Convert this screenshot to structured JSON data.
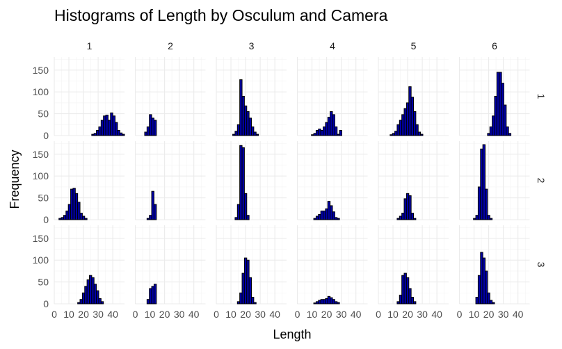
{
  "chart_data": {
    "type": "bar",
    "title": "Histograms of Length by Osculum and Camera",
    "xlabel": "Length",
    "ylabel": "Frequency",
    "col_facets": [
      "1",
      "2",
      "3",
      "4",
      "5",
      "6"
    ],
    "row_facets": [
      "1",
      "2",
      "3"
    ],
    "xlim": [
      0,
      48
    ],
    "ylim": [
      0,
      180
    ],
    "x_ticks": [
      0,
      10,
      20,
      30,
      40
    ],
    "y_ticks": [
      0,
      50,
      100,
      150
    ],
    "binwidth": 1.6,
    "bins_start": 0,
    "bar_fill": "#0000a8",
    "bar_outline": "#000000",
    "grid": true,
    "panels": [
      {
        "row": "1",
        "col": "1",
        "counts": [
          0,
          0,
          0,
          0,
          0,
          0,
          0,
          0,
          0,
          0,
          0,
          0,
          0,
          0,
          0,
          0,
          3,
          5,
          12,
          20,
          35,
          45,
          47,
          35,
          52,
          45,
          30,
          12,
          6,
          3
        ]
      },
      {
        "row": "1",
        "col": "2",
        "counts": [
          0,
          0,
          0,
          0,
          8,
          20,
          48,
          40,
          35,
          0,
          0,
          0,
          0,
          0,
          0,
          0,
          0,
          0,
          0,
          0,
          0,
          0,
          0,
          0,
          0,
          0,
          0,
          0,
          0,
          0
        ]
      },
      {
        "row": "1",
        "col": "3",
        "counts": [
          0,
          0,
          0,
          0,
          0,
          0,
          0,
          3,
          10,
          25,
          128,
          90,
          68,
          55,
          40,
          20,
          8,
          3,
          0,
          0,
          0,
          0,
          0,
          0,
          0,
          0,
          0,
          0,
          0,
          0
        ]
      },
      {
        "row": "1",
        "col": "4",
        "counts": [
          0,
          0,
          0,
          0,
          0,
          0,
          2,
          5,
          12,
          15,
          12,
          20,
          30,
          42,
          55,
          48,
          20,
          3,
          12,
          0,
          0,
          0,
          0,
          0,
          0,
          0,
          0,
          0,
          0,
          0
        ]
      },
      {
        "row": "1",
        "col": "5",
        "counts": [
          0,
          0,
          0,
          0,
          0,
          2,
          5,
          10,
          25,
          35,
          48,
          62,
          75,
          112,
          88,
          55,
          25,
          8,
          3,
          0,
          0,
          0,
          0,
          0,
          0,
          0,
          0,
          0,
          0,
          0
        ]
      },
      {
        "row": "1",
        "col": "6",
        "counts": [
          0,
          0,
          0,
          0,
          0,
          0,
          0,
          0,
          0,
          0,
          0,
          0,
          5,
          20,
          45,
          90,
          145,
          145,
          120,
          70,
          20,
          5,
          0,
          0,
          0,
          0,
          0,
          0,
          0,
          0
        ]
      },
      {
        "row": "2",
        "col": "1",
        "counts": [
          0,
          0,
          3,
          5,
          10,
          20,
          35,
          70,
          72,
          60,
          40,
          15,
          8,
          3,
          0,
          0,
          0,
          0,
          0,
          0,
          0,
          0,
          0,
          0,
          0,
          0,
          0,
          0,
          0,
          0
        ]
      },
      {
        "row": "2",
        "col": "2",
        "counts": [
          0,
          0,
          0,
          0,
          0,
          3,
          10,
          65,
          35,
          0,
          0,
          0,
          0,
          0,
          0,
          0,
          0,
          0,
          0,
          0,
          0,
          0,
          0,
          0,
          0,
          0,
          0,
          0,
          0,
          0
        ]
      },
      {
        "row": "2",
        "col": "3",
        "counts": [
          0,
          0,
          0,
          0,
          0,
          0,
          0,
          0,
          5,
          35,
          170,
          165,
          60,
          10,
          0,
          0,
          0,
          0,
          0,
          0,
          0,
          0,
          0,
          0,
          0,
          0,
          0,
          0,
          0,
          0
        ]
      },
      {
        "row": "2",
        "col": "4",
        "counts": [
          0,
          0,
          0,
          0,
          0,
          0,
          0,
          3,
          8,
          12,
          20,
          20,
          25,
          42,
          32,
          18,
          5,
          3,
          0,
          0,
          0,
          0,
          0,
          0,
          0,
          0,
          0,
          0,
          0,
          0
        ]
      },
      {
        "row": "2",
        "col": "5",
        "counts": [
          0,
          0,
          0,
          0,
          0,
          0,
          0,
          0,
          3,
          8,
          15,
          48,
          60,
          55,
          15,
          3,
          0,
          0,
          0,
          0,
          0,
          0,
          0,
          0,
          0,
          0,
          0,
          0,
          0,
          0
        ]
      },
      {
        "row": "2",
        "col": "6",
        "counts": [
          0,
          0,
          0,
          0,
          0,
          0,
          3,
          10,
          75,
          162,
          172,
          70,
          10,
          3,
          0,
          0,
          0,
          0,
          0,
          0,
          0,
          0,
          0,
          0,
          0,
          0,
          0,
          0,
          0,
          0
        ]
      },
      {
        "row": "3",
        "col": "1",
        "counts": [
          0,
          0,
          0,
          0,
          0,
          0,
          0,
          0,
          0,
          0,
          3,
          10,
          25,
          40,
          55,
          65,
          60,
          45,
          30,
          12,
          5,
          0,
          0,
          0,
          0,
          0,
          0,
          0,
          0,
          0
        ]
      },
      {
        "row": "3",
        "col": "2",
        "counts": [
          0,
          0,
          0,
          0,
          0,
          10,
          35,
          40,
          45,
          0,
          0,
          0,
          0,
          0,
          0,
          0,
          0,
          0,
          0,
          0,
          0,
          0,
          0,
          0,
          0,
          0,
          0,
          0,
          0,
          0
        ]
      },
      {
        "row": "3",
        "col": "3",
        "counts": [
          0,
          0,
          0,
          0,
          0,
          0,
          0,
          0,
          0,
          5,
          25,
          70,
          105,
          100,
          60,
          15,
          3,
          0,
          0,
          0,
          0,
          0,
          0,
          0,
          0,
          0,
          0,
          0,
          0,
          0
        ]
      },
      {
        "row": "3",
        "col": "4",
        "counts": [
          0,
          0,
          0,
          0,
          0,
          0,
          0,
          2,
          5,
          8,
          10,
          10,
          12,
          17,
          14,
          10,
          5,
          3,
          0,
          0,
          0,
          0,
          0,
          0,
          0,
          0,
          0,
          0,
          0,
          0
        ]
      },
      {
        "row": "3",
        "col": "5",
        "counts": [
          0,
          0,
          0,
          0,
          0,
          0,
          0,
          0,
          5,
          20,
          65,
          70,
          60,
          35,
          15,
          5,
          0,
          0,
          0,
          0,
          0,
          0,
          0,
          0,
          0,
          0,
          0,
          0,
          0,
          0
        ]
      },
      {
        "row": "3",
        "col": "6",
        "counts": [
          0,
          0,
          0,
          0,
          0,
          0,
          0,
          15,
          65,
          118,
          105,
          75,
          25,
          8,
          3,
          0,
          0,
          0,
          0,
          0,
          0,
          0,
          0,
          0,
          0,
          0,
          0,
          0,
          0,
          0
        ]
      }
    ]
  }
}
